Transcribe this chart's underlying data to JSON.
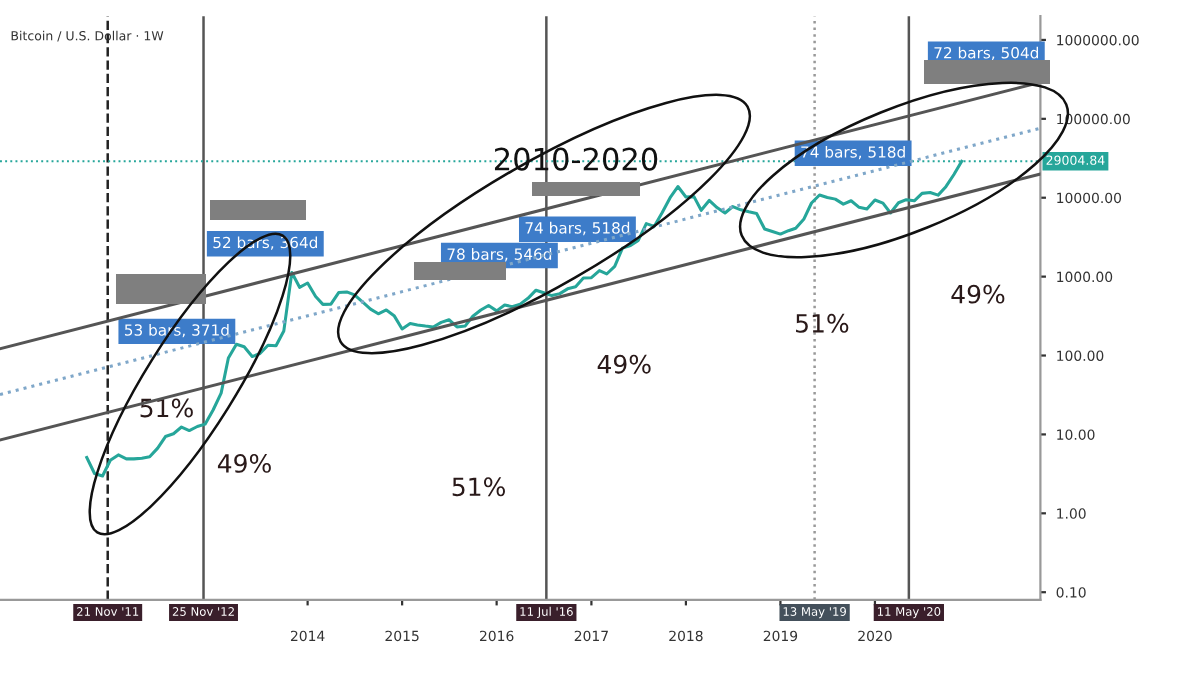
{
  "chart_data": {
    "type": "line",
    "title": "2010-2020",
    "annotations": [
      "Bitcoin / U.S. Dollar · 1W",
      "53 bars, 371d",
      "52 bars, 364d",
      "78 bars, 546d",
      "74 bars, 518d",
      "74 bars, 518d",
      "72 bars, 504d",
      "51%",
      "49%",
      "51%",
      "49%",
      "51%",
      "49%"
    ],
    "series": [
      {
        "color": "#26a69a",
        "x": [
          "2011-09",
          "2011-10",
          "2011-11",
          "2011-12",
          "2012-01",
          "2012-02",
          "2012-03",
          "2012-04",
          "2012-05",
          "2012-06",
          "2012-07",
          "2012-08",
          "2012-09",
          "2012-10",
          "2012-11",
          "2012-12",
          "2013-01",
          "2013-02",
          "2013-03",
          "2013-04",
          "2013-05",
          "2013-06",
          "2013-07",
          "2013-08",
          "2013-09",
          "2013-10",
          "2013-11",
          "2013-12",
          "2014-01",
          "2014-02",
          "2014-03",
          "2014-04",
          "2014-05",
          "2014-06",
          "2014-07",
          "2014-08",
          "2014-09",
          "2014-10",
          "2014-11",
          "2014-12",
          "2015-01",
          "2015-02",
          "2015-03",
          "2015-04",
          "2015-05",
          "2015-06",
          "2015-07",
          "2015-08",
          "2015-09",
          "2015-10",
          "2015-11",
          "2015-12",
          "2016-01",
          "2016-02",
          "2016-03",
          "2016-04",
          "2016-05",
          "2016-06",
          "2016-07",
          "2016-08",
          "2016-09",
          "2016-10",
          "2016-11",
          "2016-12",
          "2017-01",
          "2017-02",
          "2017-03",
          "2017-04",
          "2017-05",
          "2017-06",
          "2017-07",
          "2017-08",
          "2017-09",
          "2017-10",
          "2017-11",
          "2017-12",
          "2018-01",
          "2018-02",
          "2018-03",
          "2018-04",
          "2018-05",
          "2018-06",
          "2018-07",
          "2018-08",
          "2018-09",
          "2018-10",
          "2018-11",
          "2018-12",
          "2019-01",
          "2019-02",
          "2019-03",
          "2019-04",
          "2019-05",
          "2019-06",
          "2019-07",
          "2019-08",
          "2019-09",
          "2019-10",
          "2019-11",
          "2019-12",
          "2020-01",
          "2020-02",
          "2020-03",
          "2020-04",
          "2020-05",
          "2020-06",
          "2020-07",
          "2020-08",
          "2020-09",
          "2020-10",
          "2020-11",
          "2020-12"
        ],
        "values": [
          5.1,
          3.2,
          2.97,
          4.7,
          5.5,
          4.9,
          4.9,
          5.0,
          5.2,
          6.7,
          9.4,
          10.2,
          12.4,
          11.2,
          12.6,
          13.5,
          20.4,
          33.4,
          93,
          139,
          129,
          97,
          106,
          135,
          133,
          204,
          1130,
          732,
          830,
          560,
          445,
          447,
          628,
          640,
          586,
          478,
          387,
          338,
          378,
          320,
          217,
          254,
          244,
          236,
          230,
          263,
          284,
          230,
          236,
          314,
          377,
          430,
          368,
          437,
          416,
          448,
          531,
          673,
          624,
          575,
          609,
          700,
          742,
          963,
          970,
          1190,
          1080,
          1350,
          2300,
          2480,
          2875,
          4700,
          4340,
          6450,
          10000,
          13860,
          10220,
          10330,
          6930,
          9240,
          7500,
          6400,
          7730,
          7030,
          6630,
          6320,
          4020,
          3740,
          3460,
          3820,
          4100,
          5320,
          8570,
          10820,
          10090,
          9600,
          8300,
          9150,
          7550,
          7190,
          9350,
          8540,
          6410,
          8630,
          9450,
          9140,
          11350,
          11650,
          10780,
          13800,
          19700,
          29000
        ]
      },
      {
        "type": "line",
        "color": "#555555",
        "line_style": "solid",
        "x": [
          "2010-10",
          "2021-10"
        ],
        "values": [
          122,
          291000
        ]
      },
      {
        "type": "line",
        "color": "#7fa7c9",
        "line_style": "dotted",
        "x": [
          "2010-10",
          "2021-10"
        ],
        "values": [
          32,
          76000
        ]
      },
      {
        "type": "line",
        "color": "#555555",
        "line_style": "solid",
        "x": [
          "2010-10",
          "2021-10"
        ],
        "values": [
          8.5,
          20000
        ]
      }
    ],
    "log": "y",
    "xlim": [
      "2010-10-01",
      "2021-10-01"
    ],
    "ylim": [
      0.08,
      2000000
    ],
    "yticks": [
      {
        "value": 0.1,
        "label": "0.10"
      },
      {
        "value": 1,
        "label": "1.00"
      },
      {
        "value": 10,
        "label": "10.00"
      },
      {
        "value": 100,
        "label": "100.00"
      },
      {
        "value": 1000,
        "label": "1000.00"
      },
      {
        "value": 10000,
        "label": "10000.00"
      },
      {
        "value": 100000,
        "label": "100000.00"
      },
      {
        "value": 1000000,
        "label": "1000000.00"
      }
    ],
    "xticks": [
      {
        "value": "2014-01-01",
        "label": "2014"
      },
      {
        "value": "2015-01-01",
        "label": "2015"
      },
      {
        "value": "2016-01-01",
        "label": "2016"
      },
      {
        "value": "2017-01-01",
        "label": "2017"
      },
      {
        "value": "2018-01-01",
        "label": "2018"
      },
      {
        "value": "2019-01-01",
        "label": "2019"
      },
      {
        "value": "2020-01-01",
        "label": "2020"
      }
    ],
    "ref_lines": [
      {
        "axis": "x",
        "value": "2011-11-21",
        "label": "21 Nov '11",
        "line_style": "dashed",
        "color": "#222222"
      },
      {
        "axis": "x",
        "value": "2012-11-25",
        "label": "25 Nov '12",
        "line_style": "solid",
        "color": "#555555"
      },
      {
        "axis": "x",
        "value": "2016-07-11",
        "label": "11 Jul '16",
        "line_style": "solid",
        "color": "#555555"
      },
      {
        "axis": "x",
        "value": "2019-05-13",
        "label": "13 May '19",
        "line_style": "dotted",
        "color": "#999999"
      },
      {
        "axis": "x",
        "value": "2020-05-11",
        "label": "11 May '20",
        "line_style": "solid",
        "color": "#555555"
      },
      {
        "axis": "y",
        "value": 29004.84,
        "label": "29004.84",
        "line_style": "dotted",
        "color": "#26a69a"
      }
    ],
    "grid": false
  }
}
